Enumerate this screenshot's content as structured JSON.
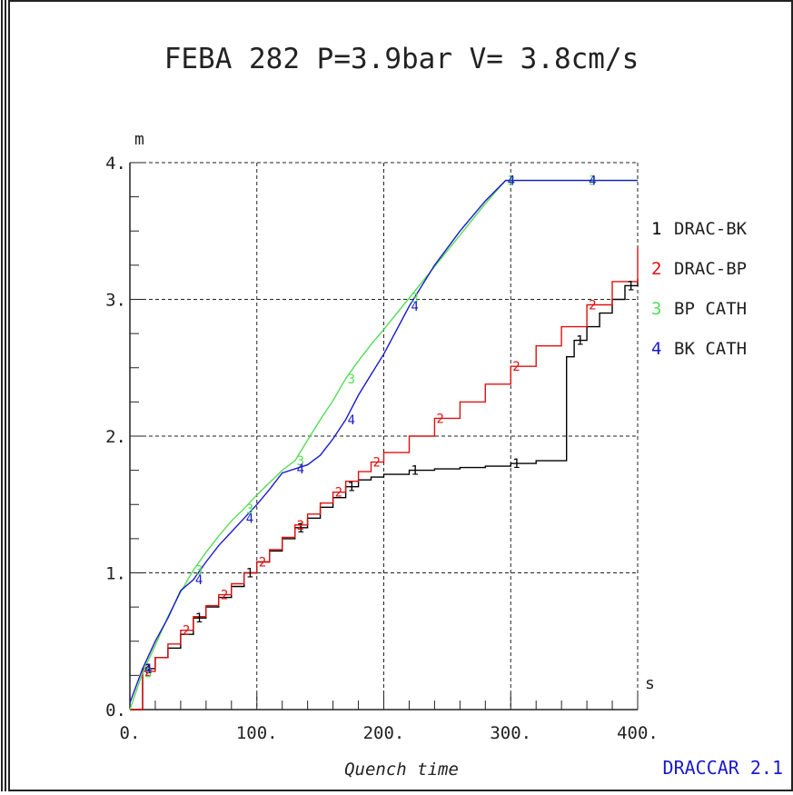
{
  "chart_data": {
    "type": "line",
    "title": "FEBA 282 P=3.9bar V= 3.8cm/s",
    "xlabel": "Quench time",
    "x_unit": "s",
    "y_unit": "m",
    "xlim": [
      0,
      400
    ],
    "ylim": [
      0,
      4
    ],
    "x_ticks": [
      "0.",
      "100.",
      "200.",
      "300.",
      "400."
    ],
    "y_ticks": [
      "0.",
      "1.",
      "2.",
      "3.",
      "4."
    ],
    "grid": true,
    "legend_position": "right",
    "footer": "DRACCAR 2.1",
    "series": [
      {
        "id": "1",
        "name": "DRAC-BK",
        "color": "#000000",
        "step": true,
        "x": [
          0,
          10,
          20,
          30,
          40,
          50,
          60,
          70,
          80,
          90,
          100,
          110,
          120,
          130,
          140,
          150,
          160,
          170,
          180,
          190,
          200,
          220,
          240,
          260,
          280,
          300,
          320,
          344,
          344,
          350,
          360,
          370,
          380,
          390,
          400
        ],
        "y": [
          0,
          0.3,
          0.38,
          0.45,
          0.55,
          0.67,
          0.75,
          0.82,
          0.9,
          1.0,
          1.08,
          1.16,
          1.25,
          1.33,
          1.4,
          1.48,
          1.55,
          1.63,
          1.68,
          1.7,
          1.72,
          1.75,
          1.76,
          1.77,
          1.78,
          1.8,
          1.82,
          1.83,
          2.58,
          2.7,
          2.8,
          2.9,
          3.0,
          3.1,
          3.15
        ]
      },
      {
        "id": "2",
        "name": "DRAC-BP",
        "color": "#e01010",
        "step": true,
        "x": [
          0,
          10,
          20,
          30,
          40,
          50,
          60,
          70,
          80,
          90,
          100,
          110,
          120,
          130,
          140,
          150,
          160,
          170,
          180,
          190,
          200,
          220,
          240,
          260,
          280,
          300,
          320,
          340,
          360,
          380,
          400
        ],
        "y": [
          0,
          0.28,
          0.38,
          0.48,
          0.58,
          0.68,
          0.76,
          0.84,
          0.92,
          1.0,
          1.08,
          1.17,
          1.26,
          1.35,
          1.43,
          1.51,
          1.59,
          1.67,
          1.74,
          1.81,
          1.88,
          2.0,
          2.13,
          2.25,
          2.38,
          2.51,
          2.66,
          2.8,
          2.96,
          3.13,
          3.38
        ]
      },
      {
        "id": "3",
        "name": "BP CATH",
        "color": "#55dd55",
        "step": false,
        "x": [
          0,
          10,
          20,
          30,
          40,
          50,
          60,
          70,
          80,
          90,
          100,
          110,
          120,
          130,
          140,
          150,
          160,
          170,
          180,
          190,
          200,
          220,
          240,
          260,
          280,
          296,
          300,
          320,
          340,
          360,
          380,
          400
        ],
        "y": [
          0,
          0.27,
          0.47,
          0.68,
          0.86,
          1.02,
          1.15,
          1.27,
          1.38,
          1.47,
          1.57,
          1.66,
          1.75,
          1.82,
          1.97,
          2.12,
          2.26,
          2.42,
          2.55,
          2.67,
          2.78,
          3.01,
          3.24,
          3.47,
          3.7,
          3.87,
          3.87,
          3.87,
          3.87,
          3.87,
          3.87,
          3.87
        ]
      },
      {
        "id": "4",
        "name": "BK CATH",
        "color": "#1a1acc",
        "step": false,
        "x": [
          0,
          10,
          20,
          30,
          40,
          50,
          60,
          70,
          80,
          90,
          100,
          110,
          120,
          130,
          140,
          150,
          160,
          170,
          180,
          190,
          200,
          220,
          240,
          260,
          280,
          296,
          300,
          320,
          340,
          360,
          380,
          400
        ],
        "y": [
          0.05,
          0.3,
          0.5,
          0.67,
          0.87,
          0.95,
          1.08,
          1.2,
          1.3,
          1.4,
          1.5,
          1.61,
          1.73,
          1.76,
          1.79,
          1.86,
          1.98,
          2.12,
          2.3,
          2.45,
          2.6,
          2.95,
          3.25,
          3.5,
          3.72,
          3.87,
          3.87,
          3.87,
          3.87,
          3.87,
          3.87,
          3.87
        ]
      }
    ]
  }
}
